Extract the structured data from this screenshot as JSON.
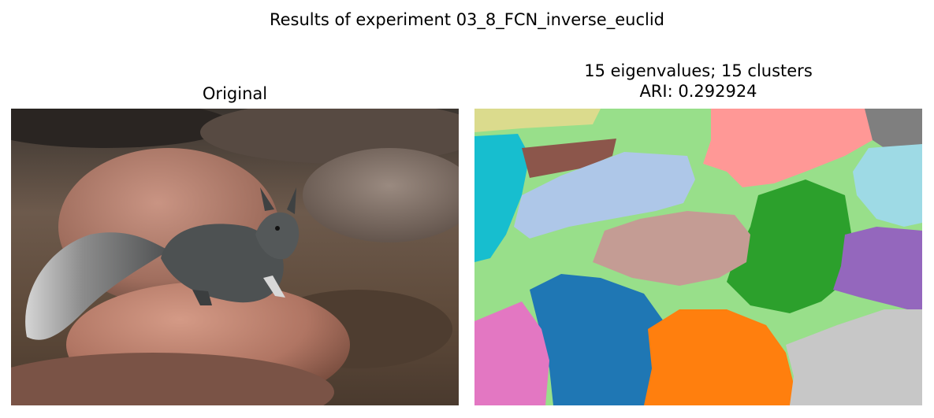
{
  "figure": {
    "suptitle": "Results of experiment 03_8_FCN_inverse_euclid"
  },
  "left_panel": {
    "title": "Original",
    "image_description": "squirrel-sitting-on-rock-photo"
  },
  "right_panel": {
    "title_line1": "15 eigenvalues; 15 clusters",
    "title_line2": "ARI: 0.292924",
    "image_description": "segmentation-map",
    "cluster_colors": [
      "#1f77b4",
      "#aec7e8",
      "#ff7f0e",
      "#98df8a",
      "#2ca02c",
      "#ff9896",
      "#9467bd",
      "#c49c94",
      "#8c564b",
      "#e377c2",
      "#c7c7c7",
      "#7f7f7f",
      "#dbdb8d",
      "#17becf",
      "#9edae5"
    ]
  }
}
